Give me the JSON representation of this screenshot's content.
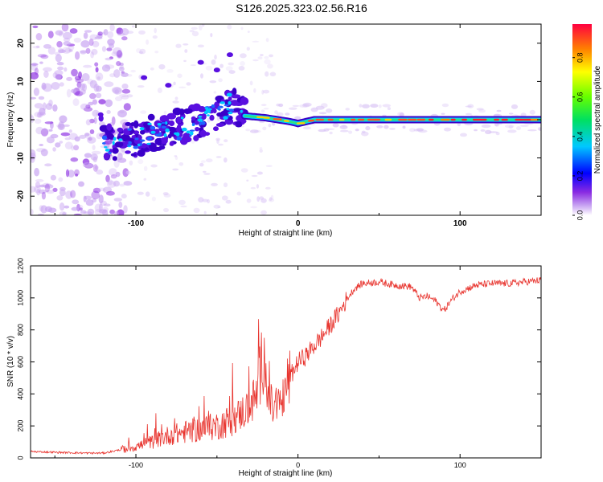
{
  "title": "S126.2025.323.02.56.R16",
  "chart_data": [
    {
      "type": "heatmap",
      "name": "spectrogram",
      "xlabel": "Height of straight line (km)",
      "ylabel": "Frequency (Hz)",
      "xlim": [
        -165,
        150
      ],
      "ylim": [
        -25,
        25
      ],
      "xticks": [
        -100,
        0,
        100
      ],
      "yticks": [
        -20,
        -10,
        0,
        10,
        20
      ],
      "colorbar": {
        "label": "Normalized spectral amplitude",
        "range": [
          0,
          0.97
        ],
        "ticks": [
          0.0,
          0.2,
          0.4,
          0.6,
          0.8
        ]
      },
      "ridge": [
        {
          "x": -120,
          "y": -6
        },
        {
          "x": -100,
          "y": -5
        },
        {
          "x": -85,
          "y": -3
        },
        {
          "x": -70,
          "y": -2
        },
        {
          "x": -55,
          "y": 1
        },
        {
          "x": -40,
          "y": 4
        },
        {
          "x": -33,
          "y": 1
        },
        {
          "x": -20,
          "y": 0.5
        },
        {
          "x": -5,
          "y": -0.5
        },
        {
          "x": 0,
          "y": -1
        },
        {
          "x": 10,
          "y": 0
        },
        {
          "x": 150,
          "y": 0
        }
      ]
    },
    {
      "type": "line",
      "name": "snr",
      "xlabel": "Height of straight line (km)",
      "ylabel": "SNR (10 * v/v)",
      "xlim": [
        -165,
        150
      ],
      "ylim": [
        0,
        1200
      ],
      "xticks": [
        -100,
        0,
        100
      ],
      "yticks": [
        0,
        200,
        400,
        600,
        800,
        1000,
        1200
      ],
      "color": "#e8342e",
      "series": [
        {
          "name": "SNR",
          "x": [
            -165,
            -150,
            -130,
            -120,
            -110,
            -100,
            -90,
            -80,
            -70,
            -60,
            -50,
            -40,
            -35,
            -30,
            -25,
            -22,
            -20,
            -18,
            -15,
            -10,
            -5,
            0,
            5,
            10,
            15,
            20,
            25,
            30,
            35,
            40,
            50,
            60,
            70,
            75,
            80,
            85,
            90,
            95,
            100,
            110,
            120,
            130,
            140,
            150
          ],
          "y": [
            40,
            35,
            30,
            30,
            50,
            70,
            100,
            140,
            160,
            180,
            200,
            240,
            280,
            320,
            400,
            620,
            650,
            360,
            300,
            360,
            500,
            600,
            640,
            700,
            760,
            830,
            900,
            990,
            1060,
            1090,
            1100,
            1080,
            1070,
            1000,
            1010,
            980,
            920,
            990,
            1040,
            1080,
            1090,
            1090,
            1100,
            1110
          ]
        }
      ]
    }
  ]
}
